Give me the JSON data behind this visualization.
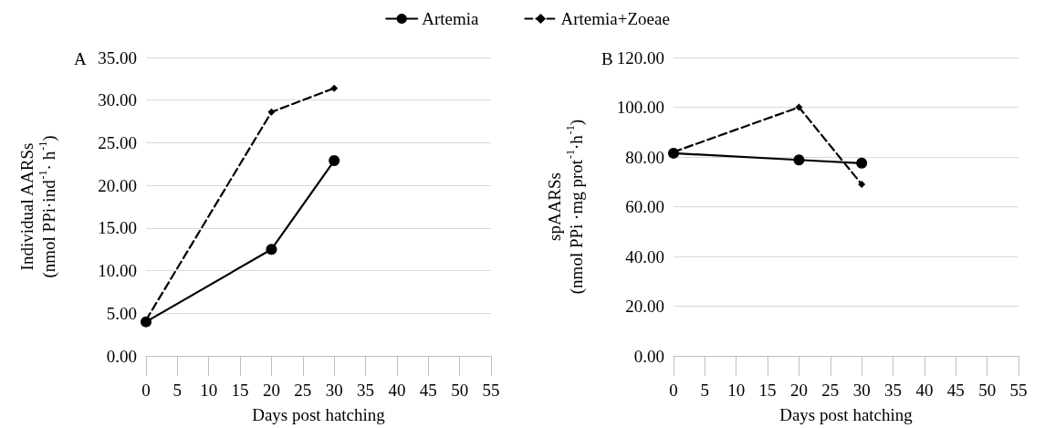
{
  "chart_data": [
    {
      "type": "line",
      "title": "A",
      "xlabel": "Days post hatching",
      "ylabel": "Individual AARSs\n(nmol PPi·ind$^{-1}$· h$^{-1}$)",
      "xlim": [
        0,
        55
      ],
      "xticks": [
        0,
        5,
        10,
        15,
        20,
        25,
        30,
        35,
        40,
        45,
        50,
        55
      ],
      "ylim": [
        0,
        35
      ],
      "yticks": [
        {
          "value": 0,
          "label": "0.00"
        },
        {
          "value": 5,
          "label": "5.00"
        },
        {
          "value": 10,
          "label": "10.00"
        },
        {
          "value": 15,
          "label": "15.00"
        },
        {
          "value": 20,
          "label": "20.00"
        },
        {
          "value": 25,
          "label": "25.00"
        },
        {
          "value": 30,
          "label": "30.00"
        },
        {
          "value": 35,
          "label": "35.00"
        }
      ],
      "grid": "y",
      "legend": "top",
      "series": [
        {
          "name": "Artemia",
          "color": "#000000",
          "marker": "circle",
          "line_style": "solid",
          "x": [
            0,
            20,
            30
          ],
          "values": [
            4.0,
            12.5,
            22.9
          ]
        },
        {
          "name": "Artemia+Zoeae",
          "color": "#000000",
          "marker": "diamond",
          "line_style": "dashed",
          "x": [
            0,
            20,
            30
          ],
          "values": [
            4.2,
            28.6,
            31.4
          ]
        }
      ]
    },
    {
      "type": "line",
      "title": "B",
      "xlabel": "Days post hatching",
      "ylabel": "spAARSs\n(nmol PPi ·mg prot$^{-1}$·h$^{-1}$)",
      "xlim": [
        0,
        55
      ],
      "xticks": [
        0,
        5,
        10,
        15,
        20,
        25,
        30,
        35,
        40,
        45,
        50,
        55
      ],
      "ylim": [
        0,
        120
      ],
      "yticks": [
        {
          "value": 0,
          "label": "0.00"
        },
        {
          "value": 20,
          "label": "20.00"
        },
        {
          "value": 40,
          "label": "40.00"
        },
        {
          "value": 60,
          "label": "60.00"
        },
        {
          "value": 80,
          "label": "80.00"
        },
        {
          "value": 100,
          "label": "100.00"
        },
        {
          "value": 120,
          "label": "120.00"
        }
      ],
      "grid": "y",
      "series": [
        {
          "color": "#000000",
          "marker": "circle",
          "line_style": "solid",
          "x": [
            0,
            20,
            30
          ],
          "values": [
            81.5,
            78.8,
            77.5
          ]
        },
        {
          "color": "#000000",
          "marker": "diamond",
          "line_style": "dashed",
          "x": [
            0,
            20,
            30
          ],
          "values": [
            82.0,
            100.0,
            69.0
          ]
        }
      ]
    }
  ]
}
